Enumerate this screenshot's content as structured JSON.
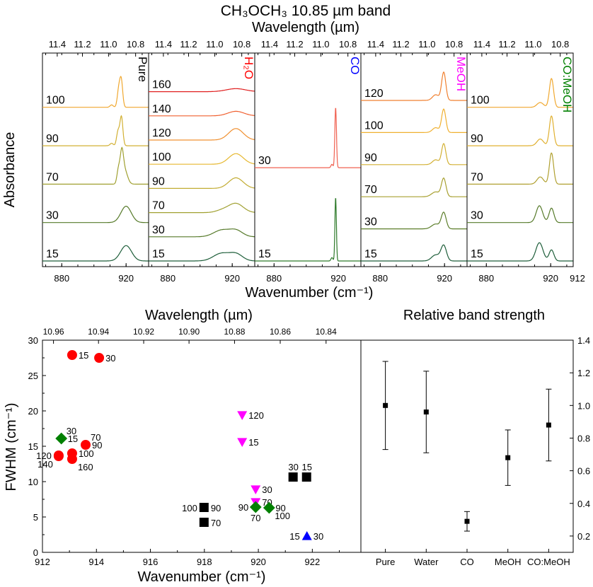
{
  "figure": {
    "top_title": "CH₃OCH₃ 10.85 µm band",
    "top_wavelength_label": "Wavelength (µm)",
    "top_xlabel": "Wavenumber (cm⁻¹)",
    "top_ylabel": "Absorbance",
    "bottom_left_title": "Wavelength (µm)",
    "bottom_left_xlabel": "Wavenumber (cm⁻¹)",
    "bottom_left_ylabel": "FWHM (cm⁻¹)",
    "bottom_right_title": "Relative band strength"
  },
  "colors": {
    "pure": "#000000",
    "water": "#ff0000",
    "co": "#0000ff",
    "meoh": "#ff00ff",
    "co_meoh": "#008000"
  },
  "chart_data": [
    {
      "type": "line",
      "title": "CH₃OCH₃ 10.85 µm band",
      "xlabel": "Wavenumber (cm⁻¹)",
      "ylabel": "Absorbance",
      "x2label": "Wavelength (µm)",
      "xlim": [
        868,
        934
      ],
      "x_ticks": [
        "880",
        "920"
      ],
      "x_tick_values": [
        880,
        920
      ],
      "x_tick_last": "912",
      "x2_ticks": [
        "11.4",
        "11.2",
        "11.0",
        "10.8"
      ],
      "panels": [
        {
          "label": "Pure",
          "label_color": "#000000",
          "series": [
            {
              "temp": "15",
              "color": "#1e5e3a",
              "peak": 920.0,
              "width": 3.4,
              "height": 0.32,
              "extra": []
            },
            {
              "temp": "30",
              "color": "#567a2a",
              "peak": 920.0,
              "width": 3.2,
              "height": 0.34,
              "extra": []
            },
            {
              "temp": "70",
              "color": "#a0a030",
              "peak": 917.3,
              "width": 1.0,
              "height": 0.55,
              "extra": [
                {
                  "c": 915.2,
                  "w": 0.9,
                  "h": 0.28
                },
                {
                  "c": 919.0,
                  "w": 1.8,
                  "h": 0.3
                }
              ]
            },
            {
              "temp": "90",
              "color": "#d2b033",
              "peak": 917.1,
              "width": 0.9,
              "height": 0.6,
              "extra": [
                {
                  "c": 915.0,
                  "w": 0.9,
                  "h": 0.3
                },
                {
                  "c": 911.0,
                  "w": 1.0,
                  "h": 0.05
                }
              ]
            },
            {
              "temp": "100",
              "color": "#f0a830",
              "peak": 917.0,
              "width": 0.9,
              "height": 0.55,
              "extra": [
                {
                  "c": 915.4,
                  "w": 0.9,
                  "h": 0.35
                },
                {
                  "c": 911.0,
                  "w": 1.0,
                  "h": 0.05
                }
              ]
            }
          ]
        },
        {
          "label": "H₂O",
          "label_color": "#ff0000",
          "series": [
            {
              "temp": "15",
              "color": "#1e5e3a",
              "peak": 913.3,
              "width": 5.0,
              "height": 0.25,
              "extra": [
                {
                  "c": 922.5,
                  "w": 4.0,
                  "h": 0.22
                }
              ]
            },
            {
              "temp": "30",
              "color": "#567a2a",
              "peak": 913.5,
              "width": 5.0,
              "height": 0.22,
              "extra": [
                {
                  "c": 922.5,
                  "w": 4.0,
                  "h": 0.2
                }
              ]
            },
            {
              "temp": "70",
              "color": "#a0a030",
              "peak": 922.3,
              "width": 4.5,
              "height": 0.3,
              "extra": [
                {
                  "c": 914.0,
                  "w": 4.0,
                  "h": 0.08
                }
              ]
            },
            {
              "temp": "90",
              "color": "#c2ac33",
              "peak": 922.3,
              "width": 4.5,
              "height": 0.35,
              "extra": []
            },
            {
              "temp": "100",
              "color": "#e6b830",
              "peak": 922.3,
              "width": 4.5,
              "height": 0.35,
              "extra": []
            },
            {
              "temp": "120",
              "color": "#f09030",
              "peak": 922.3,
              "width": 4.5,
              "height": 0.38,
              "extra": []
            },
            {
              "temp": "140",
              "color": "#f06030",
              "peak": 922.3,
              "width": 5.0,
              "height": 0.15,
              "extra": []
            },
            {
              "temp": "160",
              "color": "#e02020",
              "peak": 922.3,
              "width": 6.0,
              "height": 0.1,
              "extra": []
            }
          ]
        },
        {
          "label": "CO",
          "label_color": "#0000ff",
          "series": [
            {
              "temp": "15",
              "color": "#2e7a2a",
              "peak": 918.3,
              "width": 0.45,
              "height": 0.95,
              "extra": [
                {
                  "c": 916.0,
                  "w": 0.6,
                  "h": 0.05
                }
              ]
            },
            {
              "temp": "30",
              "color": "#f06050",
              "peak": 918.3,
              "width": 0.5,
              "height": 0.9,
              "extra": [
                {
                  "c": 916.0,
                  "w": 0.6,
                  "h": 0.05
                }
              ]
            }
          ]
        },
        {
          "label": "MeOH",
          "label_color": "#ff00ff",
          "series": [
            {
              "temp": "15",
              "color": "#1e5e3a",
              "peak": 919.5,
              "width": 1.7,
              "height": 0.38,
              "extra": [
                {
                  "c": 914.5,
                  "w": 2.5,
                  "h": 0.15
                }
              ]
            },
            {
              "temp": "30",
              "color": "#5c7e2a",
              "peak": 919.5,
              "width": 1.5,
              "height": 0.4,
              "extra": [
                {
                  "c": 914.5,
                  "w": 2.5,
                  "h": 0.12
                }
              ]
            },
            {
              "temp": "70",
              "color": "#a8a030",
              "peak": 919.5,
              "width": 1.4,
              "height": 0.45,
              "extra": [
                {
                  "c": 914.5,
                  "w": 2.5,
                  "h": 0.12
                }
              ]
            },
            {
              "temp": "90",
              "color": "#d2b033",
              "peak": 919.5,
              "width": 1.3,
              "height": 0.52,
              "extra": [
                {
                  "c": 914.5,
                  "w": 2.0,
                  "h": 0.12
                }
              ]
            },
            {
              "temp": "100",
              "color": "#f0b030",
              "peak": 919.5,
              "width": 1.3,
              "height": 0.58,
              "extra": [
                {
                  "c": 914.5,
                  "w": 2.0,
                  "h": 0.12
                }
              ]
            },
            {
              "temp": "120",
              "color": "#f08030",
              "peak": 919.5,
              "width": 1.3,
              "height": 0.7,
              "extra": [
                {
                  "c": 914.5,
                  "w": 2.0,
                  "h": 0.14
                }
              ]
            }
          ]
        },
        {
          "label": "CO:MeOH",
          "label_color": "#008000",
          "series": [
            {
              "temp": "15",
              "color": "#1e5e3a",
              "peak": 913.0,
              "width": 2.2,
              "height": 0.38,
              "extra": [
                {
                  "c": 920.5,
                  "w": 1.5,
                  "h": 0.23
                }
              ]
            },
            {
              "temp": "30",
              "color": "#567a2a",
              "peak": 913.0,
              "width": 2.0,
              "height": 0.35,
              "extra": [
                {
                  "c": 920.5,
                  "w": 1.5,
                  "h": 0.3
                }
              ]
            },
            {
              "temp": "70",
              "color": "#b0a030",
              "peak": 920.5,
              "width": 1.3,
              "height": 0.65,
              "extra": [
                {
                  "c": 913.5,
                  "w": 2.0,
                  "h": 0.15
                }
              ]
            },
            {
              "temp": "90",
              "color": "#e0b030",
              "peak": 920.5,
              "width": 1.3,
              "height": 0.62,
              "extra": [
                {
                  "c": 913.5,
                  "w": 2.0,
                  "h": 0.14
                }
              ]
            },
            {
              "temp": "100",
              "color": "#f0a830",
              "peak": 920.5,
              "width": 1.3,
              "height": 0.6,
              "extra": [
                {
                  "c": 913.5,
                  "w": 2.0,
                  "h": 0.1
                }
              ]
            }
          ]
        }
      ]
    },
    {
      "type": "scatter",
      "title": "Wavelength (µm)",
      "xlabel": "Wavenumber (cm⁻¹)",
      "ylabel": "FWHM (cm⁻¹)",
      "xlim": [
        912,
        923.8
      ],
      "ylim": [
        0,
        30
      ],
      "x_ticks": [
        912,
        914,
        916,
        918,
        920,
        922
      ],
      "y_ticks": [
        0,
        5,
        10,
        15,
        20,
        25,
        30
      ],
      "x2_ticks": [
        "10.96",
        "10.94",
        "10.92",
        "10.90",
        "10.88",
        "10.86",
        "10.84"
      ],
      "x2_tick_values": [
        10.96,
        10.94,
        10.92,
        10.9,
        10.88,
        10.86,
        10.84
      ],
      "series": [
        {
          "group": "pure",
          "marker": "square",
          "color": "#000000",
          "points": [
            {
              "x": 918.0,
              "y": 6.3,
              "labels": [
                {
                  "t": "100",
                  "side": "left"
                },
                {
                  "t": "90",
                  "side": "right"
                }
              ]
            },
            {
              "x": 918.0,
              "y": 4.2,
              "labels": [
                {
                  "t": "70",
                  "side": "right"
                }
              ]
            },
            {
              "x": 921.3,
              "y": 10.6,
              "labels": [
                {
                  "t": "30",
                  "side": "above"
                }
              ]
            },
            {
              "x": 921.8,
              "y": 10.6,
              "labels": [
                {
                  "t": "15",
                  "side": "above"
                }
              ]
            }
          ]
        },
        {
          "group": "water",
          "marker": "circle",
          "color": "#ff0000",
          "points": [
            {
              "x": 913.1,
              "y": 27.9,
              "labels": [
                {
                  "t": "15",
                  "side": "right"
                }
              ]
            },
            {
              "x": 914.1,
              "y": 27.5,
              "labels": [
                {
                  "t": "30",
                  "side": "right"
                }
              ]
            },
            {
              "x": 913.6,
              "y": 15.2,
              "labels": [
                {
                  "t": "70",
                  "side": "upright"
                },
                {
                  "t": "90",
                  "side": "right"
                }
              ]
            },
            {
              "x": 913.1,
              "y": 14.0,
              "labels": [
                {
                  "t": "100",
                  "side": "right"
                }
              ]
            },
            {
              "x": 912.6,
              "y": 13.7,
              "labels": [
                {
                  "t": "120",
                  "side": "left"
                }
              ]
            },
            {
              "x": 912.6,
              "y": 13.6,
              "labels": [
                {
                  "t": "140",
                  "side": "downleft"
                }
              ]
            },
            {
              "x": 913.1,
              "y": 13.2,
              "labels": [
                {
                  "t": "160",
                  "side": "downright"
                }
              ]
            }
          ]
        },
        {
          "group": "co",
          "marker": "triangle-up",
          "color": "#0000ff",
          "points": [
            {
              "x": 921.8,
              "y": 2.3,
              "labels": [
                {
                  "t": "15",
                  "side": "left"
                },
                {
                  "t": "30",
                  "side": "right"
                }
              ]
            }
          ]
        },
        {
          "group": "meoh",
          "marker": "triangle-down",
          "color": "#ff00ff",
          "points": [
            {
              "x": 919.4,
              "y": 19.4,
              "labels": [
                {
                  "t": "120",
                  "side": "right"
                }
              ]
            },
            {
              "x": 919.4,
              "y": 15.6,
              "labels": [
                {
                  "t": "15",
                  "side": "right"
                }
              ]
            },
            {
              "x": 919.9,
              "y": 8.9,
              "labels": [
                {
                  "t": "30",
                  "side": "right"
                }
              ]
            },
            {
              "x": 919.9,
              "y": 7.1,
              "labels": [
                {
                  "t": "70",
                  "side": "right"
                }
              ]
            }
          ]
        },
        {
          "group": "co_meoh",
          "marker": "diamond",
          "color": "#008000",
          "points": [
            {
              "x": 912.7,
              "y": 16.1,
              "labels": [
                {
                  "t": "30",
                  "side": "upright"
                },
                {
                  "t": "15",
                  "side": "right"
                }
              ]
            },
            {
              "x": 919.9,
              "y": 6.4,
              "labels": [
                {
                  "t": "90",
                  "side": "left"
                },
                {
                  "t": "70",
                  "side": "below"
                }
              ]
            },
            {
              "x": 920.4,
              "y": 6.3,
              "labels": [
                {
                  "t": "90",
                  "side": "right"
                },
                {
                  "t": "100",
                  "side": "downright"
                }
              ]
            }
          ]
        }
      ]
    },
    {
      "type": "scatter",
      "title": "Relative band strength",
      "categories": [
        "Pure",
        "Water",
        "CO",
        "MeOH",
        "CO:MeOH"
      ],
      "values": [
        1.0,
        0.96,
        0.29,
        0.68,
        0.88
      ],
      "errors": [
        0.27,
        0.25,
        0.06,
        0.17,
        0.22
      ],
      "ylim": [
        0.1,
        1.4
      ],
      "y_ticks": [
        "0.2",
        "0.4",
        "0.6",
        "0.8",
        "1.0",
        "1.2",
        "1.4"
      ],
      "y_tick_values": [
        0.2,
        0.4,
        0.6,
        0.8,
        1.0,
        1.2,
        1.4
      ]
    }
  ]
}
